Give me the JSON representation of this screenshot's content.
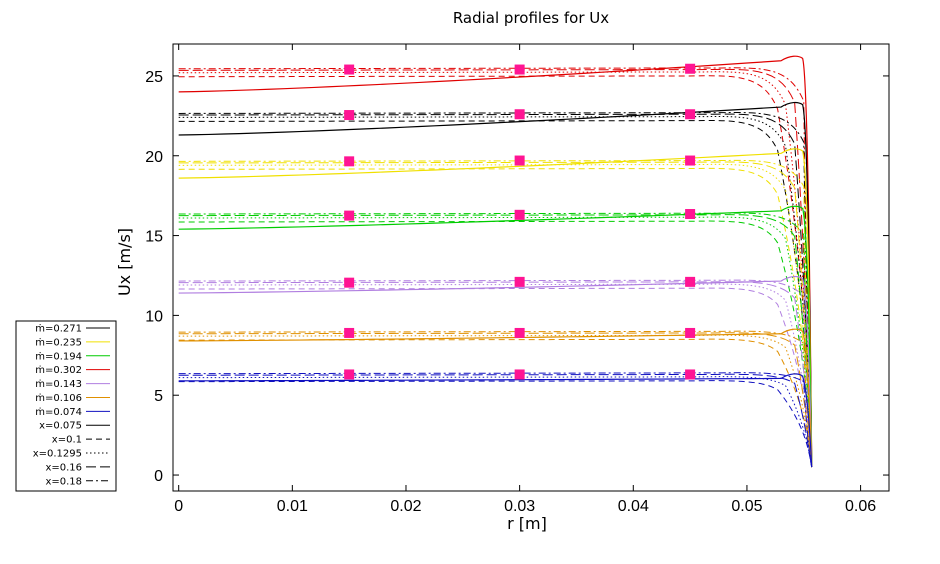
{
  "chart_data": {
    "type": "line",
    "title": "Radial profiles for Ux",
    "xlabel": "r [m]",
    "ylabel": "Ux [m/s]",
    "xlim": [
      -0.0005,
      0.0625
    ],
    "ylim": [
      -1,
      27
    ],
    "x_ticks": [
      0,
      0.01,
      0.02,
      0.03,
      0.04,
      0.05,
      0.06
    ],
    "x_tick_labels": [
      "0",
      "0.01",
      "0.02",
      "0.03",
      "0.04",
      "0.05",
      "0.06"
    ],
    "y_ticks": [
      0,
      5,
      10,
      15,
      20,
      25
    ],
    "y_tick_labels": [
      "0",
      "5",
      "10",
      "15",
      "20",
      "25"
    ],
    "grid": false,
    "legend_position": "left",
    "legend": [
      {
        "label": "ṁ=0.271",
        "color": "#000000",
        "dash": "solid"
      },
      {
        "label": "ṁ=0.235",
        "color": "#f0e000",
        "dash": "solid"
      },
      {
        "label": "ṁ=0.194",
        "color": "#00cc00",
        "dash": "solid"
      },
      {
        "label": "ṁ=0.302",
        "color": "#e00000",
        "dash": "solid"
      },
      {
        "label": "ṁ=0.143",
        "color": "#b07ee0",
        "dash": "solid"
      },
      {
        "label": "ṁ=0.106",
        "color": "#e09000",
        "dash": "solid"
      },
      {
        "label": "ṁ=0.074",
        "color": "#1010c0",
        "dash": "solid"
      },
      {
        "label": "x=0.075",
        "color": "#000000",
        "dash": "solid"
      },
      {
        "label": "x=0.1",
        "color": "#000000",
        "dash": "dashed"
      },
      {
        "label": "x=0.1295",
        "color": "#000000",
        "dash": "dotted"
      },
      {
        "label": "x=0.16",
        "color": "#000000",
        "dash": "longdash"
      },
      {
        "label": "x=0.18",
        "color": "#000000",
        "dash": "dashdot"
      }
    ],
    "series": [
      {
        "mass_flow": 0.302,
        "color": "#e00000",
        "plateau": 25.4,
        "x075": {
          "start": 24.0,
          "peak": 26.3
        }
      },
      {
        "mass_flow": 0.271,
        "color": "#000000",
        "plateau": 22.6,
        "x075": {
          "start": 21.3,
          "peak": 23.4
        }
      },
      {
        "mass_flow": 0.235,
        "color": "#f0e000",
        "plateau": 19.6,
        "x075": {
          "start": 18.6,
          "peak": 20.5
        }
      },
      {
        "mass_flow": 0.194,
        "color": "#00cc00",
        "plateau": 16.3,
        "x075": {
          "start": 15.4,
          "peak": 16.9
        }
      },
      {
        "mass_flow": 0.143,
        "color": "#b07ee0",
        "plateau": 12.1,
        "x075": {
          "start": 11.4,
          "peak": 12.5
        }
      },
      {
        "mass_flow": 0.106,
        "color": "#e09000",
        "plateau": 8.9,
        "x075": {
          "start": 8.4,
          "peak": 9.2
        }
      },
      {
        "mass_flow": 0.074,
        "color": "#1010c0",
        "plateau": 6.3,
        "x075": {
          "start": 5.9,
          "peak": 6.4
        }
      }
    ],
    "wall_r": 0.0557,
    "wall_u": 0.5,
    "markers": {
      "color": "#ff1493",
      "r": [
        0.015,
        0.03,
        0.045
      ],
      "values": [
        [
          25.4,
          25.4,
          25.45
        ],
        [
          22.55,
          22.6,
          22.6
        ],
        [
          19.65,
          19.7,
          19.7
        ],
        [
          16.25,
          16.3,
          16.35
        ],
        [
          12.05,
          12.1,
          12.1
        ],
        [
          8.9,
          8.9,
          8.9
        ],
        [
          6.3,
          6.3,
          6.3
        ]
      ]
    }
  }
}
